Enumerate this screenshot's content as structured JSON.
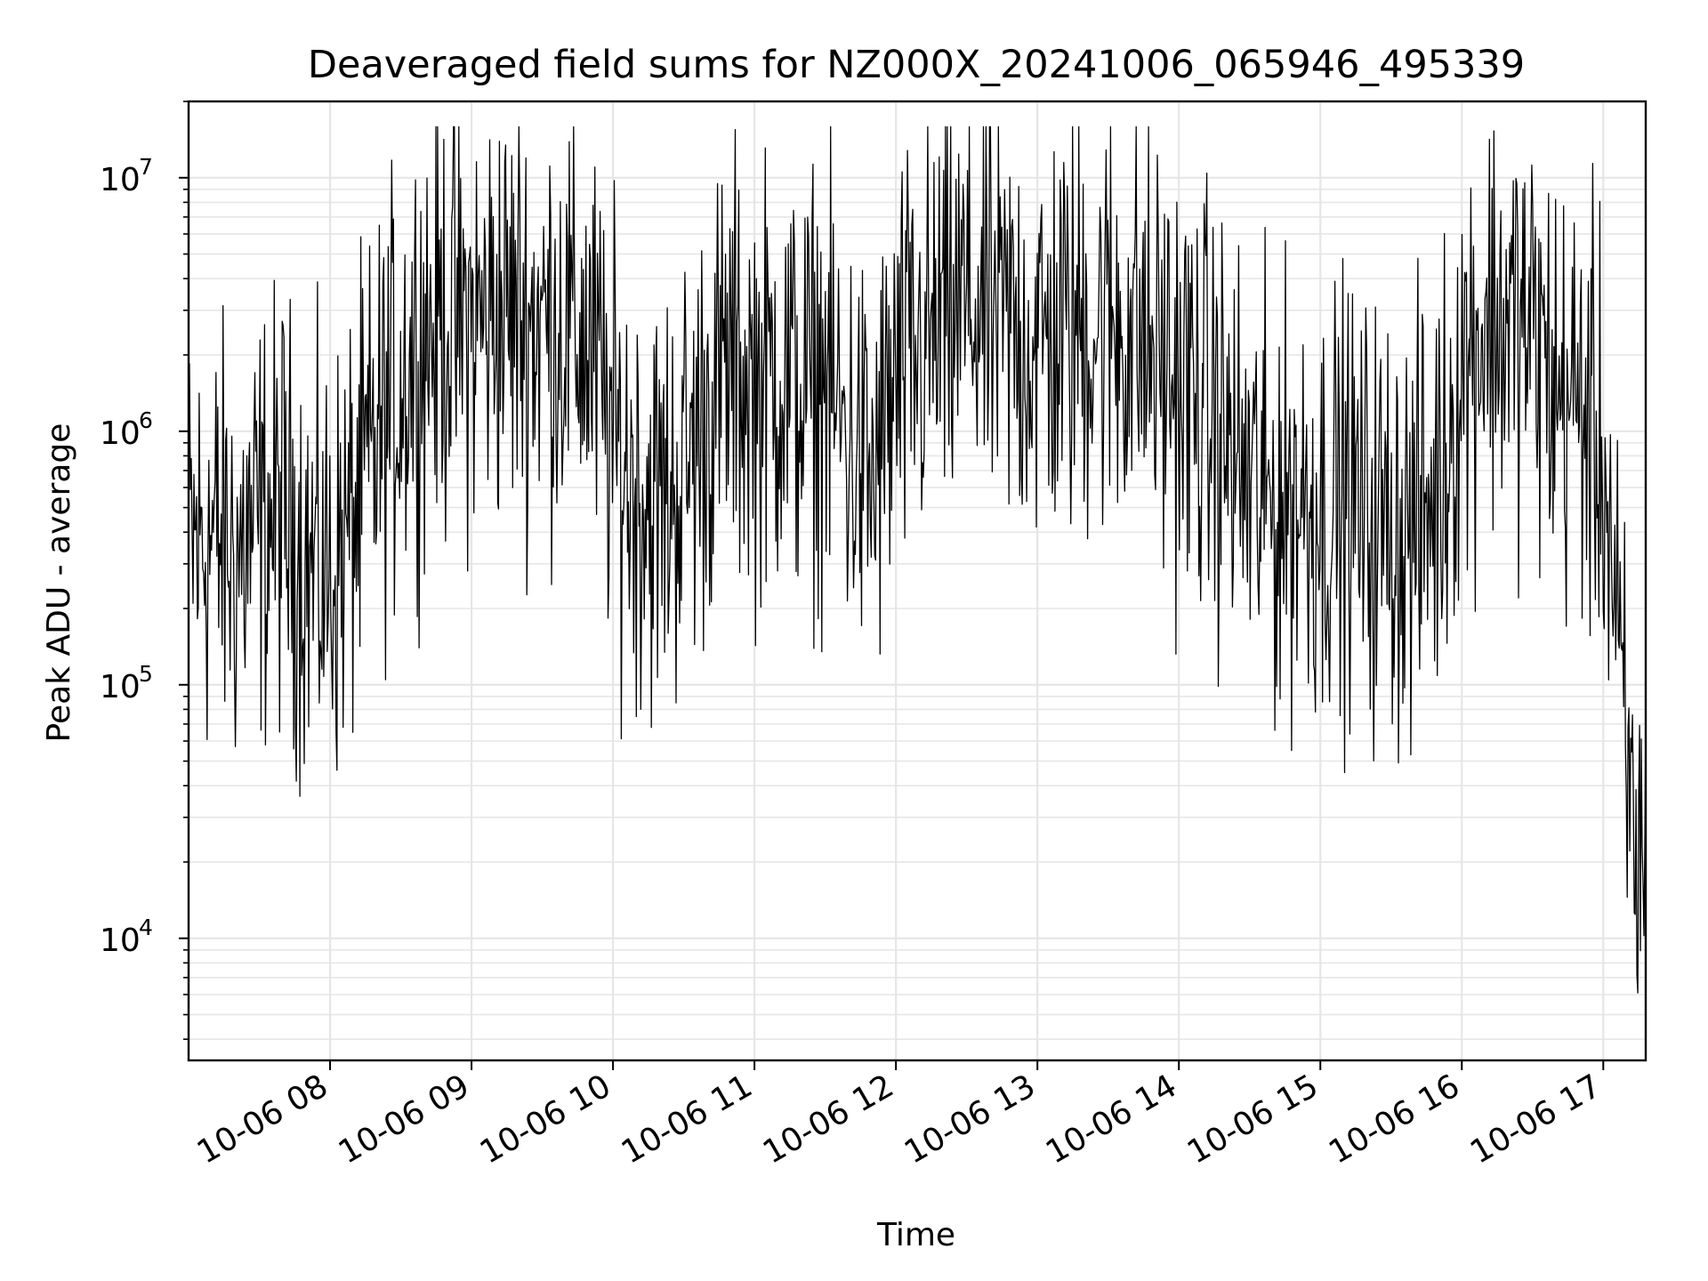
{
  "chart_data": {
    "type": "line",
    "title": "Deaveraged field sums for NZ000X_20241006_065946_495339",
    "xlabel": "Time",
    "ylabel": "Peak ADU - average",
    "yscale": "log",
    "ylim": [
      3300,
      20000000
    ],
    "xlim": [
      "2024-10-06T07:00",
      "2024-10-06T17:18"
    ],
    "grid": true,
    "line_color": "#000000",
    "grid_color": "#e6e6e6",
    "x_ticks": [
      {
        "value": "2024-10-06T08:00",
        "label": "10-06 08"
      },
      {
        "value": "2024-10-06T09:00",
        "label": "10-06 09"
      },
      {
        "value": "2024-10-06T10:00",
        "label": "10-06 10"
      },
      {
        "value": "2024-10-06T11:00",
        "label": "10-06 11"
      },
      {
        "value": "2024-10-06T12:00",
        "label": "10-06 12"
      },
      {
        "value": "2024-10-06T13:00",
        "label": "10-06 13"
      },
      {
        "value": "2024-10-06T14:00",
        "label": "10-06 14"
      },
      {
        "value": "2024-10-06T15:00",
        "label": "10-06 15"
      },
      {
        "value": "2024-10-06T16:00",
        "label": "10-06 16"
      },
      {
        "value": "2024-10-06T17:00",
        "label": "10-06 17"
      }
    ],
    "y_ticks": [
      {
        "value": 10000,
        "base": "10",
        "exp": "4"
      },
      {
        "value": 100000,
        "base": "10",
        "exp": "5"
      },
      {
        "value": 1000000,
        "base": "10",
        "exp": "6"
      },
      {
        "value": 10000000,
        "base": "10",
        "exp": "7"
      }
    ],
    "series": [
      {
        "x": [
          "2024-10-06T07:00",
          "2024-10-06T07:10",
          "2024-10-06T07:20",
          "2024-10-06T07:30",
          "2024-10-06T07:40",
          "2024-10-06T07:50",
          "2024-10-06T08:00",
          "2024-10-06T08:10",
          "2024-10-06T08:20",
          "2024-10-06T08:30",
          "2024-10-06T08:40",
          "2024-10-06T08:50",
          "2024-10-06T09:00",
          "2024-10-06T09:10",
          "2024-10-06T09:20",
          "2024-10-06T09:30",
          "2024-10-06T09:40",
          "2024-10-06T09:50",
          "2024-10-06T10:00",
          "2024-10-06T10:10",
          "2024-10-06T10:20",
          "2024-10-06T10:30",
          "2024-10-06T10:40",
          "2024-10-06T10:50",
          "2024-10-06T11:00",
          "2024-10-06T11:10",
          "2024-10-06T11:20",
          "2024-10-06T11:30",
          "2024-10-06T11:40",
          "2024-10-06T11:50",
          "2024-10-06T12:00",
          "2024-10-06T12:10",
          "2024-10-06T12:20",
          "2024-10-06T12:30",
          "2024-10-06T12:40",
          "2024-10-06T12:50",
          "2024-10-06T13:00",
          "2024-10-06T13:10",
          "2024-10-06T13:20",
          "2024-10-06T13:30",
          "2024-10-06T13:40",
          "2024-10-06T13:50",
          "2024-10-06T14:00",
          "2024-10-06T14:10",
          "2024-10-06T14:20",
          "2024-10-06T14:30",
          "2024-10-06T14:40",
          "2024-10-06T14:50",
          "2024-10-06T15:00",
          "2024-10-06T15:10",
          "2024-10-06T15:20",
          "2024-10-06T15:30",
          "2024-10-06T15:40",
          "2024-10-06T15:50",
          "2024-10-06T16:00",
          "2024-10-06T16:10",
          "2024-10-06T16:20",
          "2024-10-06T16:30",
          "2024-10-06T16:40",
          "2024-10-06T16:50",
          "2024-10-06T17:00",
          "2024-10-06T17:05",
          "2024-10-06T17:10",
          "2024-10-06T17:15",
          "2024-10-06T17:18"
        ],
        "y": [
          350000,
          380000,
          320000,
          420000,
          500000,
          300000,
          260000,
          450000,
          900000,
          1600000,
          2500000,
          2800000,
          2600000,
          3000000,
          2900000,
          2700000,
          2600000,
          2200000,
          900000,
          600000,
          500000,
          700000,
          1200000,
          1800000,
          1500000,
          1700000,
          1400000,
          1600000,
          900000,
          600000,
          1500000,
          2000000,
          2600000,
          3200000,
          2800000,
          2500000,
          2200000,
          2400000,
          2600000,
          2700000,
          2500000,
          2000000,
          1500000,
          1300000,
          900000,
          600000,
          500000,
          550000,
          500000,
          550000,
          450000,
          420000,
          400000,
          600000,
          1800000,
          2800000,
          2700000,
          2500000,
          1400000,
          1300000,
          800000,
          200000,
          40000,
          20000,
          22000
        ]
      }
    ]
  }
}
